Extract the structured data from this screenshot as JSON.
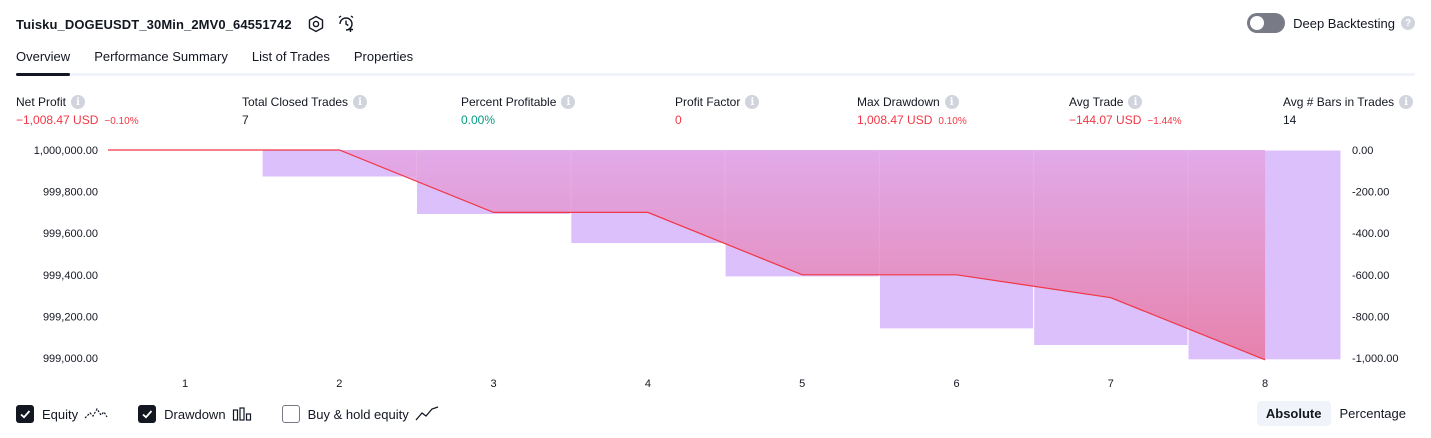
{
  "header": {
    "title": "Tuisku_DOGEUSDT_30Min_2MV0_64551742",
    "deep_backtesting_label": "Deep Backtesting",
    "help_glyph": "?"
  },
  "tabs": [
    {
      "label": "Overview",
      "active": true
    },
    {
      "label": "Performance Summary",
      "active": false
    },
    {
      "label": "List of Trades",
      "active": false
    },
    {
      "label": "Properties",
      "active": false
    }
  ],
  "stats": {
    "net_profit": {
      "label": "Net Profit",
      "value": "−1,008.47 USD",
      "sub": "−0.10%"
    },
    "total_closed_trades": {
      "label": "Total Closed Trades",
      "value": "7"
    },
    "percent_profitable": {
      "label": "Percent Profitable",
      "value": "0.00%"
    },
    "profit_factor": {
      "label": "Profit Factor",
      "value": "0"
    },
    "max_drawdown": {
      "label": "Max Drawdown",
      "value": "1,008.47 USD",
      "sub": "0.10%"
    },
    "avg_trade": {
      "label": "Avg Trade",
      "value": "−144.07 USD",
      "sub": "−1.44%"
    },
    "avg_bars": {
      "label": "Avg # Bars in Trades",
      "value": "14"
    }
  },
  "chart_data": {
    "type": "line",
    "title": "",
    "x": [
      1,
      2,
      3,
      4,
      5,
      6,
      7,
      8
    ],
    "x_tick_labels": [
      "1",
      "2",
      "3",
      "4",
      "5",
      "6",
      "7",
      "8"
    ],
    "series": [
      {
        "name": "Equity",
        "axis": "left",
        "values": [
          1000000.0,
          1000000.0,
          999700.0,
          999700.0,
          999400.0,
          999400.0,
          999290.0,
          998991.53
        ]
      },
      {
        "name": "Drawdown",
        "axis": "right",
        "type": "bar",
        "values": [
          0,
          -130,
          -310,
          -450,
          -610,
          -860,
          -940,
          -1008.47
        ]
      }
    ],
    "left_axis": {
      "ylim": [
        999000.0,
        1000000.0
      ],
      "tick_labels": [
        "1,000,000.00",
        "999,800.00",
        "999,600.00",
        "999,400.00",
        "999,200.00",
        "999,000.00"
      ]
    },
    "right_axis": {
      "ylim": [
        -1000.0,
        0.0
      ],
      "tick_labels": [
        "0.00",
        "-200.00",
        "-400.00",
        "-600.00",
        "-800.00",
        "-1,000.00"
      ]
    },
    "colors": {
      "equity_line": "#f23645",
      "equity_fill": "#e8789f",
      "drawdown_fill": "#dcc0fc"
    }
  },
  "legend": {
    "equity": {
      "label": "Equity",
      "checked": true
    },
    "drawdown": {
      "label": "Drawdown",
      "checked": true
    },
    "buy_hold": {
      "label": "Buy & hold equity",
      "checked": false
    }
  },
  "mode": {
    "absolute": "Absolute",
    "percentage": "Percentage",
    "selected": "Absolute"
  }
}
